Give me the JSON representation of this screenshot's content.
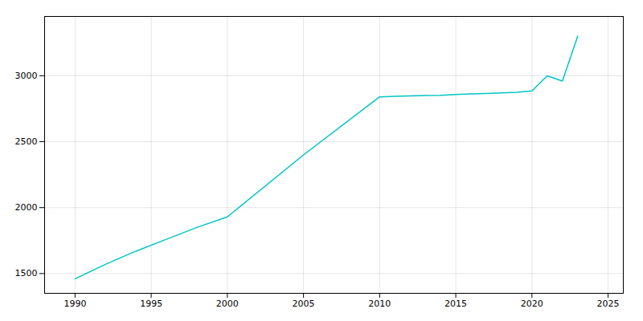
{
  "chart_data": {
    "type": "line",
    "x": [
      1990,
      1992,
      1994,
      1996,
      1998,
      2000,
      2005,
      2010,
      2011,
      2012,
      2013,
      2014,
      2015,
      2016,
      2017,
      2018,
      2019,
      2020,
      2021,
      2022,
      2023
    ],
    "values": [
      1460,
      1570,
      1670,
      1760,
      1850,
      1930,
      2400,
      2840,
      2845,
      2848,
      2850,
      2852,
      2858,
      2862,
      2866,
      2870,
      2875,
      2885,
      3000,
      2960,
      3300
    ],
    "color": "#00C5C5",
    "xlim": [
      1988,
      2026
    ],
    "ylim": [
      1350,
      3450
    ],
    "xticks": [
      1990,
      1995,
      2000,
      2005,
      2010,
      2015,
      2020,
      2025
    ],
    "yticks": [
      1500,
      2000,
      2500,
      3000
    ],
    "grid": true
  }
}
